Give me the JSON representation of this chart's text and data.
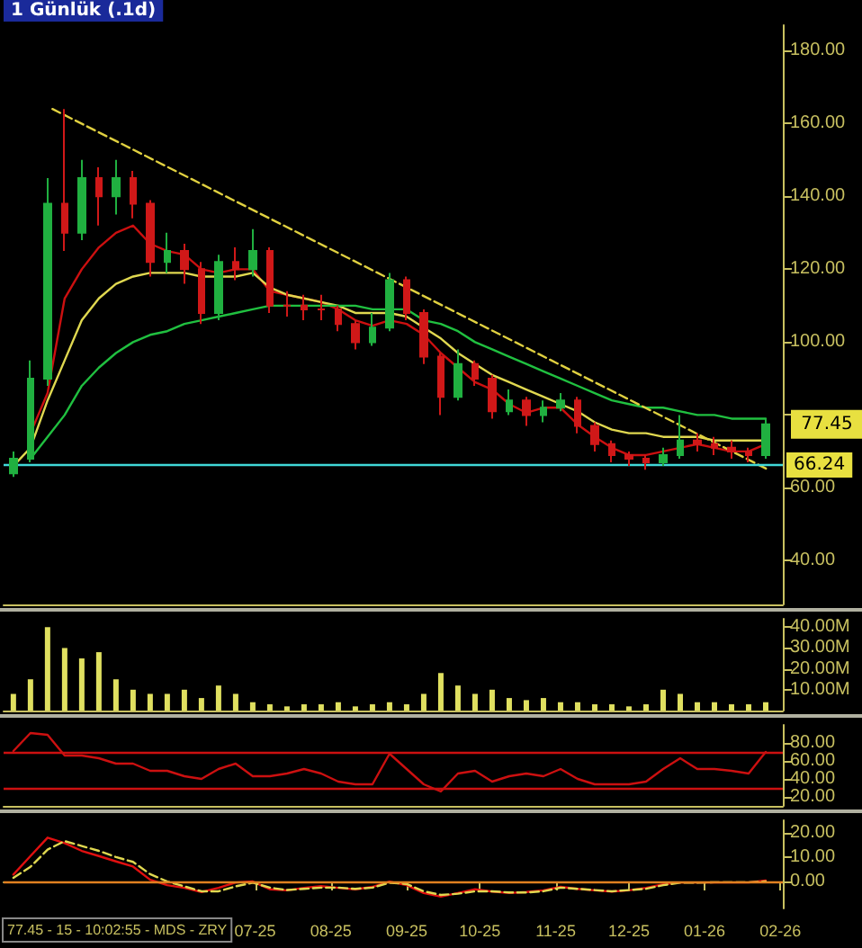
{
  "chart_data": [
    {
      "type": "candlestick",
      "title": "1 Günlük (.1d)",
      "x": [
        "2025-03-24",
        "2025-03-31",
        "2025-04-07",
        "2025-04-14",
        "2025-04-21",
        "2025-04-28",
        "2025-05-05",
        "2025-05-12",
        "2025-05-19",
        "2025-05-26",
        "2025-06-02",
        "2025-06-09",
        "2025-06-16",
        "2025-06-23",
        "2025-06-30",
        "2025-07-07",
        "2025-07-14",
        "2025-07-21",
        "2025-07-28",
        "2025-08-04",
        "2025-08-11",
        "2025-08-18",
        "2025-08-25",
        "2025-09-01",
        "2025-09-08",
        "2025-09-15",
        "2025-09-22",
        "2025-09-29",
        "2025-10-06",
        "2025-10-13",
        "2025-10-20",
        "2025-10-27",
        "2025-11-03",
        "2025-11-10",
        "2025-11-17",
        "2025-11-24",
        "2025-12-01",
        "2025-12-08",
        "2025-12-15",
        "2025-12-22",
        "2025-12-29",
        "2026-01-05",
        "2026-01-12",
        "2026-01-19",
        "2026-01-26"
      ],
      "ohlc": [
        [
          64,
          70,
          63,
          68
        ],
        [
          68,
          95,
          67,
          90
        ],
        [
          90,
          145,
          88,
          138
        ],
        [
          138,
          164,
          125,
          130
        ],
        [
          130,
          150,
          128,
          145
        ],
        [
          145,
          148,
          132,
          140
        ],
        [
          140,
          150,
          135,
          145
        ],
        [
          145,
          147,
          134,
          138
        ],
        [
          138,
          139,
          118,
          122
        ],
        [
          122,
          130,
          119,
          125
        ],
        [
          125,
          127,
          116,
          120
        ],
        [
          120,
          122,
          105,
          108
        ],
        [
          108,
          124,
          106,
          122
        ],
        [
          122,
          126,
          117,
          120
        ],
        [
          120,
          131,
          118,
          125
        ],
        [
          125,
          126,
          108,
          110
        ],
        [
          110,
          114,
          107,
          110
        ],
        [
          110,
          113,
          106,
          109
        ],
        [
          109,
          113,
          106,
          109
        ],
        [
          109,
          110,
          103,
          105
        ],
        [
          105,
          106,
          98,
          100
        ],
        [
          100,
          108,
          99,
          104
        ],
        [
          104,
          119,
          103,
          117
        ],
        [
          117,
          118,
          106,
          108
        ],
        [
          108,
          109,
          94,
          96
        ],
        [
          96,
          97,
          80,
          85
        ],
        [
          85,
          98,
          84,
          94
        ],
        [
          94,
          95,
          88,
          90
        ],
        [
          90,
          91,
          79,
          81
        ],
        [
          81,
          87,
          80,
          84
        ],
        [
          84,
          85,
          77,
          80
        ],
        [
          80,
          84,
          78,
          82
        ],
        [
          82,
          86,
          81,
          84
        ],
        [
          84,
          85,
          75,
          77
        ],
        [
          77,
          78,
          70,
          72
        ],
        [
          72,
          73,
          67,
          69
        ],
        [
          69,
          70,
          66,
          68
        ],
        [
          68,
          69,
          65,
          67
        ],
        [
          67,
          71,
          66,
          69
        ],
        [
          69,
          80,
          68,
          73
        ],
        [
          73,
          75,
          70,
          72
        ],
        [
          72,
          74,
          69,
          71
        ],
        [
          71,
          73,
          68,
          70
        ],
        [
          70,
          71,
          67,
          69
        ],
        [
          69,
          79,
          68,
          77.45
        ]
      ],
      "colors": [
        "#20b040",
        "#20b040",
        "#20b040",
        "#d01818",
        "#20b040",
        "#d01818",
        "#20b040",
        "#d01818",
        "#d01818",
        "#20b040",
        "#d01818",
        "#d01818",
        "#20b040",
        "#d01818",
        "#20b040",
        "#d01818",
        "#d01818",
        "#d01818",
        "#d01818",
        "#d01818",
        "#d01818",
        "#20b040",
        "#20b040",
        "#d01818",
        "#d01818",
        "#d01818",
        "#20b040",
        "#d01818",
        "#d01818",
        "#20b040",
        "#d01818",
        "#20b040",
        "#20b040",
        "#d01818",
        "#d01818",
        "#d01818",
        "#d01818",
        "#d01818",
        "#20b040",
        "#20b040",
        "#d01818",
        "#d01818",
        "#d01818",
        "#d01818",
        "#20b040"
      ],
      "series": [
        {
          "type": "line",
          "color": "#cc1010",
          "values": [
            null,
            75,
            86,
            112,
            120,
            126,
            130,
            132,
            127,
            125,
            124,
            120,
            119,
            120,
            120,
            114,
            113,
            112,
            111,
            109,
            106,
            104.5,
            106,
            105,
            102,
            97,
            93,
            89,
            87,
            83,
            80.6,
            82,
            82,
            77.4,
            74,
            71,
            69,
            69,
            70,
            71,
            72,
            71,
            70,
            70,
            72
          ]
        },
        {
          "type": "line",
          "color": "#e0d850",
          "values": [
            66,
            71,
            84,
            95,
            106,
            112,
            116,
            118,
            119,
            119,
            119,
            118,
            118,
            118,
            119,
            115,
            113,
            112,
            111,
            110,
            108,
            108,
            108,
            107,
            104,
            101,
            97,
            94,
            91,
            89,
            87,
            85,
            83,
            81,
            78,
            76,
            75,
            75,
            74,
            74,
            74,
            73,
            73,
            73,
            73
          ]
        },
        {
          "type": "line",
          "color": "#20c040",
          "values": [
            null,
            68,
            74,
            80,
            88,
            93,
            97,
            100,
            102,
            103,
            105,
            106,
            107,
            108,
            109,
            110,
            110,
            110,
            110,
            110,
            110,
            109,
            109,
            109,
            106,
            105,
            103,
            100,
            98,
            96,
            94,
            92,
            90,
            88,
            86,
            84,
            83,
            82,
            82,
            81,
            80,
            80,
            79,
            79,
            79
          ]
        },
        {
          "type": "line",
          "color": "#e0d040",
          "line_style": "dashed",
          "x": [
            "2025-04-09",
            "2026-01-27"
          ],
          "values": [
            164,
            65
          ]
        }
      ],
      "marker": "none",
      "xlim": [
        "2025-03-20",
        "2026-02-02"
      ],
      "ylim": [
        28,
        187
      ],
      "yticks": [
        {
          "value": 40,
          "label": "40.00"
        },
        {
          "value": 60,
          "label": "60.00"
        },
        {
          "value": 80,
          "label": null
        },
        {
          "value": 100,
          "label": "100.00"
        },
        {
          "value": 120,
          "label": "120.00"
        },
        {
          "value": 140,
          "label": "140.00"
        },
        {
          "value": 160,
          "label": "160.00"
        },
        {
          "value": 180,
          "label": "180.00"
        }
      ],
      "ref_lines": [
        {
          "axis": "y",
          "value": 66.24,
          "label": "66.24",
          "color": "#40d8d8"
        }
      ],
      "annotations": [
        {
          "text": "77.45",
          "x": "2026-01-26",
          "y": 77.45
        }
      ],
      "tick_labels": "y"
    },
    {
      "type": "bar",
      "color": "#e0e060",
      "x": [
        "2025-03-24",
        "2025-03-31",
        "2025-04-07",
        "2025-04-14",
        "2025-04-21",
        "2025-04-28",
        "2025-05-05",
        "2025-05-12",
        "2025-05-19",
        "2025-05-26",
        "2025-06-02",
        "2025-06-09",
        "2025-06-16",
        "2025-06-23",
        "2025-06-30",
        "2025-07-07",
        "2025-07-14",
        "2025-07-21",
        "2025-07-28",
        "2025-08-04",
        "2025-08-11",
        "2025-08-18",
        "2025-08-25",
        "2025-09-01",
        "2025-09-08",
        "2025-09-15",
        "2025-09-22",
        "2025-09-29",
        "2025-10-06",
        "2025-10-13",
        "2025-10-20",
        "2025-10-27",
        "2025-11-03",
        "2025-11-10",
        "2025-11-17",
        "2025-11-24",
        "2025-12-01",
        "2025-12-08",
        "2025-12-15",
        "2025-12-22",
        "2025-12-29",
        "2026-01-05",
        "2026-01-12",
        "2026-01-19",
        "2026-01-26"
      ],
      "values": [
        8,
        15,
        40,
        30,
        25,
        28,
        15,
        10,
        8,
        8,
        10,
        6,
        12,
        8,
        4,
        3,
        2,
        3,
        3,
        4,
        2,
        3,
        4,
        3,
        8,
        18,
        12,
        8,
        10,
        6,
        5,
        6,
        4,
        4,
        3,
        3,
        2,
        3,
        10,
        8,
        4,
        4,
        3,
        3,
        4
      ],
      "xlim": [
        "2025-03-20",
        "2026-02-02"
      ],
      "ylim": [
        0,
        44
      ],
      "yticks": [
        {
          "value": 10,
          "label": "10.00M"
        },
        {
          "value": 20,
          "label": "20.00M"
        },
        {
          "value": 30,
          "label": "30.00M"
        },
        {
          "value": 40,
          "label": "40.00M"
        }
      ],
      "tick_labels": "y"
    },
    {
      "type": "line",
      "marker": "none",
      "x": [
        "2025-03-24",
        "2025-03-31",
        "2025-04-07",
        "2025-04-14",
        "2025-04-21",
        "2025-04-28",
        "2025-05-05",
        "2025-05-12",
        "2025-05-19",
        "2025-05-26",
        "2025-06-02",
        "2025-06-09",
        "2025-06-16",
        "2025-06-23",
        "2025-06-30",
        "2025-07-07",
        "2025-07-14",
        "2025-07-21",
        "2025-07-28",
        "2025-08-04",
        "2025-08-11",
        "2025-08-18",
        "2025-08-25",
        "2025-09-01",
        "2025-09-08",
        "2025-09-15",
        "2025-09-22",
        "2025-09-29",
        "2025-10-06",
        "2025-10-13",
        "2025-10-20",
        "2025-10-27",
        "2025-11-03",
        "2025-11-10",
        "2025-11-17",
        "2025-11-24",
        "2025-12-01",
        "2025-12-08",
        "2025-12-15",
        "2025-12-22",
        "2025-12-29",
        "2026-01-05",
        "2026-01-12",
        "2026-01-19",
        "2026-01-26"
      ],
      "series": [
        {
          "color": "#cc1010",
          "values": [
            71,
            91,
            89,
            66,
            66,
            63,
            57,
            57,
            49,
            49,
            43,
            40,
            51,
            57,
            43,
            43,
            46,
            51,
            46,
            37,
            34,
            34,
            68,
            51,
            34,
            26,
            46,
            49,
            37,
            43,
            46,
            43,
            51,
            40,
            34,
            34,
            34,
            37,
            51,
            63,
            51,
            51,
            49,
            46,
            70
          ]
        }
      ],
      "xlim": [
        "2025-03-20",
        "2026-02-02"
      ],
      "ylim": [
        10,
        100
      ],
      "yticks": [
        {
          "value": 20,
          "label": "20.00"
        },
        {
          "value": 40,
          "label": "40.00"
        },
        {
          "value": 60,
          "label": "60.00"
        },
        {
          "value": 80,
          "label": "80.00"
        }
      ],
      "ref_lines": [
        {
          "axis": "y",
          "value": 70,
          "color": "#cc1010"
        },
        {
          "axis": "y",
          "value": 30,
          "color": "#cc1010"
        }
      ],
      "tick_labels": "y"
    },
    {
      "type": "line",
      "marker": "none",
      "x": [
        "2025-03-24",
        "2025-03-31",
        "2025-04-07",
        "2025-04-14",
        "2025-04-21",
        "2025-04-28",
        "2025-05-05",
        "2025-05-12",
        "2025-05-19",
        "2025-05-26",
        "2025-06-02",
        "2025-06-09",
        "2025-06-16",
        "2025-06-23",
        "2025-06-30",
        "2025-07-07",
        "2025-07-14",
        "2025-07-21",
        "2025-07-28",
        "2025-08-04",
        "2025-08-11",
        "2025-08-18",
        "2025-08-25",
        "2025-09-01",
        "2025-09-08",
        "2025-09-15",
        "2025-09-22",
        "2025-09-29",
        "2025-10-06",
        "2025-10-13",
        "2025-10-20",
        "2025-10-27",
        "2025-11-03",
        "2025-11-10",
        "2025-11-17",
        "2025-11-24",
        "2025-12-01",
        "2025-12-08",
        "2025-12-15",
        "2025-12-22",
        "2025-12-29",
        "2026-01-05",
        "2026-01-12",
        "2026-01-19",
        "2026-01-26"
      ],
      "series": [
        {
          "color": "#e01010",
          "values": [
            2.8,
            10.4,
            17.9,
            15.7,
            12.5,
            10.4,
            8.2,
            6.1,
            0.7,
            -1.5,
            -2.6,
            -4.3,
            -2.6,
            -0.4,
            0,
            -3.2,
            -3.6,
            -2.6,
            -1.9,
            -2.6,
            -3.2,
            -2.2,
            0,
            -1.5,
            -4.7,
            -6.2,
            -4.7,
            -3.2,
            -4.1,
            -4.7,
            -4.3,
            -3.6,
            -2.2,
            -3,
            -3.6,
            -4.1,
            -3.6,
            -2.6,
            -1.1,
            -0.4,
            -0.4,
            -0.4,
            -0.4,
            -0.4,
            0.4
          ]
        },
        {
          "color": "#e0d850",
          "line_style": "dashed",
          "values": [
            1.5,
            6,
            13,
            16.5,
            14.5,
            12.5,
            10,
            8,
            3,
            0,
            -2,
            -4,
            -4,
            -2,
            -0.5,
            -2.5,
            -3.5,
            -3,
            -2.5,
            -2.5,
            -3,
            -2.5,
            -0.5,
            -1,
            -4,
            -5.5,
            -5,
            -4,
            -4,
            -4.5,
            -4.5,
            -4,
            -2.5,
            -3,
            -3.5,
            -4,
            -3.5,
            -3,
            -1.5,
            -0.5,
            -0.5,
            -0.3,
            -0.3,
            -0.3,
            0
          ]
        }
      ],
      "xlim": [
        "2025-03-20",
        "2026-02-02"
      ],
      "xticks": [
        {
          "value": "2025-07-01",
          "label": "07-25"
        },
        {
          "value": "2025-08-01",
          "label": "08-25"
        },
        {
          "value": "2025-09-01",
          "label": "09-25"
        },
        {
          "value": "2025-10-01",
          "label": "10-25"
        },
        {
          "value": "2025-11-01",
          "label": "11-25"
        },
        {
          "value": "2025-12-01",
          "label": "12-25"
        },
        {
          "value": "2026-01-01",
          "label": "01-26"
        },
        {
          "value": "2026-02-01",
          "label": "02-26"
        }
      ],
      "ylim": [
        -11,
        25
      ],
      "yticks": [
        {
          "value": 0,
          "label": "0.00"
        },
        {
          "value": 10,
          "label": "10.00"
        },
        {
          "value": 20,
          "label": "20.00"
        }
      ],
      "ref_lines": [
        {
          "axis": "y",
          "value": 0,
          "color": "#e08020"
        }
      ],
      "annotations": [
        "77.45 - 15 - 10:02:55 - MDS - ZRY"
      ]
    }
  ]
}
